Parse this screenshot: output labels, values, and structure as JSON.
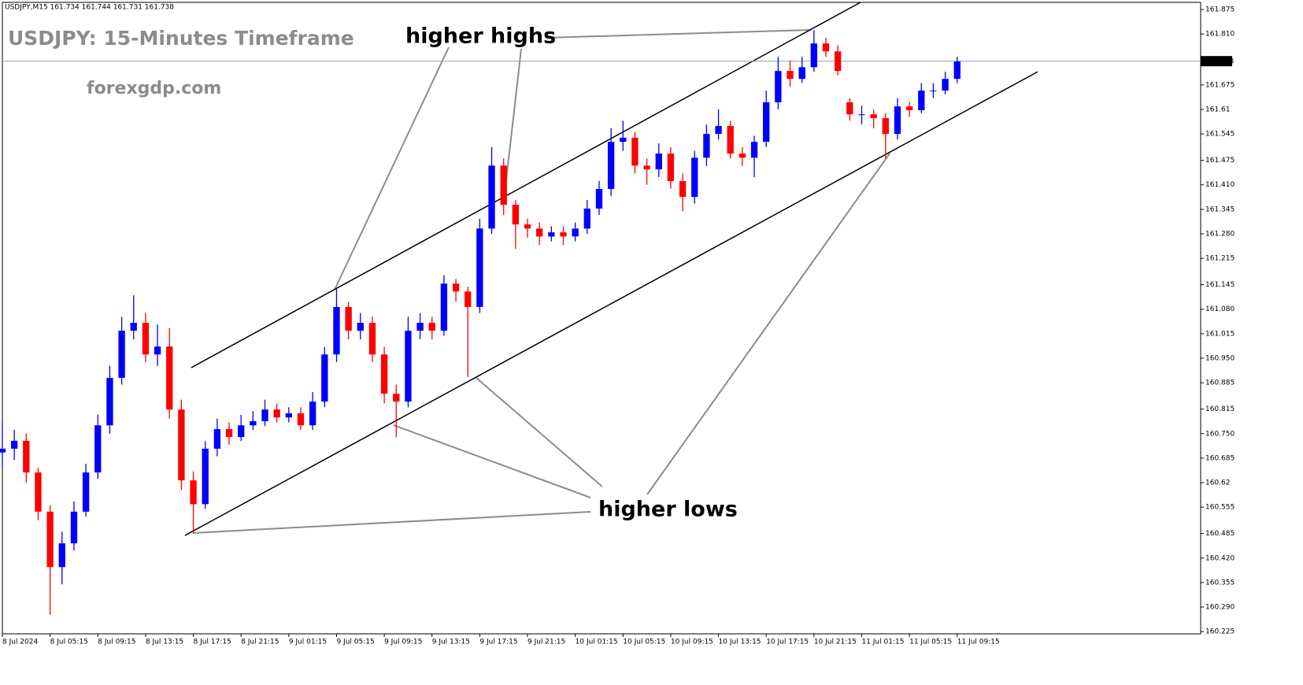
{
  "chart_data": {
    "type": "candlestick",
    "chart_label": "USDJPY,M15  161.734 161.744 161.731 161.738",
    "title": "USDJPY: 15-Minutes Timeframe",
    "subtitle": "forexgdp.com",
    "annotations": [
      "higher highs",
      "higher lows"
    ],
    "up_color": "#0000ff",
    "down_color": "#ff0000",
    "grid": false,
    "last_price": 161.738,
    "xlim": [
      0,
      401.6
    ],
    "ylim": [
      160.219,
      161.894
    ],
    "xticks": [
      {
        "value": 0,
        "label": "8 Jul 2024"
      },
      {
        "value": 16,
        "label": "8 Jul 05:15"
      },
      {
        "value": 32,
        "label": "8 Jul 09:15"
      },
      {
        "value": 48,
        "label": "8 Jul 13:15"
      },
      {
        "value": 64,
        "label": "8 Jul 17:15"
      },
      {
        "value": 80,
        "label": "8 Jul 21:15"
      },
      {
        "value": 96,
        "label": "9 Jul 01:15"
      },
      {
        "value": 112,
        "label": "9 Jul 05:15"
      },
      {
        "value": 128,
        "label": "9 Jul 09:15"
      },
      {
        "value": 144,
        "label": "9 Jul 13:15"
      },
      {
        "value": 160,
        "label": "9 Jul 17:15"
      },
      {
        "value": 176,
        "label": "9 Jul 21:15"
      },
      {
        "value": 192,
        "label": "10 Jul 01:15"
      },
      {
        "value": 208,
        "label": "10 Jul 05:15"
      },
      {
        "value": 224,
        "label": "10 Jul 09:15"
      },
      {
        "value": 240,
        "label": "10 Jul 13:15"
      },
      {
        "value": 256,
        "label": "10 Jul 17:15"
      },
      {
        "value": 272,
        "label": "10 Jul 21:15"
      },
      {
        "value": 288,
        "label": "11 Jul 01:15"
      },
      {
        "value": 304,
        "label": "11 Jul 05:15"
      },
      {
        "value": 320,
        "label": "11 Jul 09:15"
      }
    ],
    "yticks": [
      161.875,
      {
        "value": 161.81,
        "label": "161.810"
      },
      161.675,
      161.61,
      161.545,
      161.475,
      {
        "value": 161.41,
        "label": "161.410"
      },
      161.345,
      {
        "value": 161.28,
        "label": "161.280"
      },
      161.215,
      161.145,
      {
        "value": 161.08,
        "label": "161.080"
      },
      161.015,
      {
        "value": 160.95,
        "label": "160.950"
      },
      160.885,
      160.815,
      {
        "value": 160.75,
        "label": "160.750"
      },
      160.685,
      160.62,
      160.555,
      160.485,
      {
        "value": 160.42,
        "label": "160.420"
      },
      160.355,
      {
        "value": 160.29,
        "label": "160.290"
      },
      160.225
    ],
    "trendlines": [
      {
        "x": [
          63.3,
          287.6
        ],
        "y": [
          160.925,
          161.894
        ]
      },
      {
        "x": [
          61.2,
          347
        ],
        "y": [
          160.48,
          161.71
        ]
      }
    ],
    "x": [
      0,
      4,
      8,
      12,
      16,
      20,
      24,
      28,
      32,
      36,
      40,
      44,
      48,
      52,
      56,
      60,
      64,
      68,
      72,
      76,
      80,
      84,
      88,
      92,
      96,
      100,
      104,
      108,
      112,
      116,
      120,
      124,
      128,
      132,
      136,
      140,
      144,
      148,
      152,
      156,
      160,
      164,
      168,
      172,
      176,
      180,
      184,
      188,
      192,
      196,
      200,
      204,
      208,
      212,
      216,
      220,
      224,
      228,
      232,
      236,
      240,
      244,
      248,
      252,
      256,
      260,
      264,
      268,
      272,
      276,
      280,
      284,
      288,
      292,
      296,
      300,
      304,
      308,
      312,
      316,
      320
    ],
    "open": [
      160.7,
      160.71,
      160.731,
      160.647,
      160.543,
      160.396,
      160.459,
      160.543,
      160.647,
      160.772,
      160.898,
      161.023,
      161.044,
      160.96,
      160.981,
      160.814,
      160.626,
      160.563,
      160.71,
      160.762,
      160.741,
      160.772,
      160.783,
      160.814,
      160.793,
      160.804,
      160.772,
      160.835,
      160.96,
      161.086,
      161.023,
      161.044,
      160.96,
      160.856,
      160.835,
      161.023,
      161.044,
      161.023,
      161.148,
      161.127,
      161.086,
      161.294,
      161.461,
      161.357,
      161.305,
      161.294,
      161.273,
      161.284,
      161.273,
      161.294,
      161.347,
      161.399,
      161.524,
      161.535,
      161.461,
      161.451,
      161.493,
      161.42,
      161.378,
      161.482,
      161.545,
      161.566,
      161.493,
      161.482,
      161.524,
      161.629,
      161.712,
      161.691,
      161.722,
      161.785,
      161.764,
      161.629,
      161.597,
      161.597,
      161.587,
      161.545,
      161.618,
      161.608,
      161.66,
      161.66,
      161.691
    ],
    "high": [
      160.78,
      160.76,
      160.75,
      160.66,
      160.56,
      160.49,
      160.57,
      160.67,
      160.8,
      160.93,
      161.06,
      161.117,
      161.07,
      161.04,
      161.03,
      160.84,
      160.65,
      160.73,
      160.79,
      160.78,
      160.8,
      160.81,
      160.84,
      160.83,
      160.82,
      160.82,
      160.86,
      160.98,
      161.135,
      161.1,
      161.07,
      161.06,
      160.98,
      160.88,
      161.06,
      161.07,
      161.06,
      161.17,
      161.16,
      161.14,
      161.32,
      161.51,
      161.48,
      161.37,
      161.32,
      161.31,
      161.3,
      161.3,
      161.31,
      161.37,
      161.42,
      161.56,
      161.58,
      161.55,
      161.48,
      161.52,
      161.51,
      161.44,
      161.5,
      161.57,
      161.61,
      161.58,
      161.51,
      161.54,
      161.66,
      161.75,
      161.74,
      161.75,
      161.82,
      161.8,
      161.78,
      161.64,
      161.62,
      161.61,
      161.6,
      161.64,
      161.63,
      161.68,
      161.68,
      161.71,
      161.75
    ],
    "low": [
      160.66,
      160.68,
      160.62,
      160.52,
      160.27,
      160.35,
      160.44,
      160.53,
      160.63,
      160.75,
      160.88,
      161.0,
      160.94,
      160.93,
      160.79,
      160.6,
      160.485,
      160.55,
      160.69,
      160.72,
      160.73,
      160.76,
      160.77,
      160.78,
      160.78,
      160.76,
      160.76,
      160.82,
      160.94,
      161.0,
      161.0,
      160.94,
      160.83,
      160.74,
      160.82,
      161.0,
      161.0,
      161.01,
      161.1,
      160.9,
      161.07,
      161.28,
      161.33,
      161.24,
      161.27,
      161.25,
      161.26,
      161.25,
      161.26,
      161.28,
      161.33,
      161.38,
      161.5,
      161.44,
      161.41,
      161.43,
      161.4,
      161.34,
      161.36,
      161.46,
      161.53,
      161.48,
      161.46,
      161.43,
      161.51,
      161.61,
      161.67,
      161.68,
      161.71,
      161.75,
      161.7,
      161.58,
      161.57,
      161.56,
      161.48,
      161.53,
      161.59,
      161.6,
      161.64,
      161.65,
      161.68
    ],
    "close": [
      160.71,
      160.731,
      160.647,
      160.543,
      160.396,
      160.459,
      160.543,
      160.647,
      160.772,
      160.898,
      161.023,
      161.044,
      160.96,
      160.981,
      160.814,
      160.626,
      160.563,
      160.71,
      160.762,
      160.741,
      160.772,
      160.783,
      160.814,
      160.793,
      160.804,
      160.772,
      160.835,
      160.96,
      161.086,
      161.023,
      161.044,
      160.96,
      160.856,
      160.835,
      161.023,
      161.044,
      161.023,
      161.148,
      161.127,
      161.086,
      161.294,
      161.461,
      161.357,
      161.305,
      161.294,
      161.273,
      161.284,
      161.273,
      161.294,
      161.347,
      161.399,
      161.524,
      161.535,
      161.461,
      161.451,
      161.493,
      161.42,
      161.378,
      161.482,
      161.545,
      161.566,
      161.493,
      161.482,
      161.524,
      161.629,
      161.712,
      161.691,
      161.722,
      161.785,
      161.764,
      161.712,
      161.597,
      161.597,
      161.587,
      161.545,
      161.618,
      161.608,
      161.66,
      161.66,
      161.691,
      161.737
    ]
  }
}
